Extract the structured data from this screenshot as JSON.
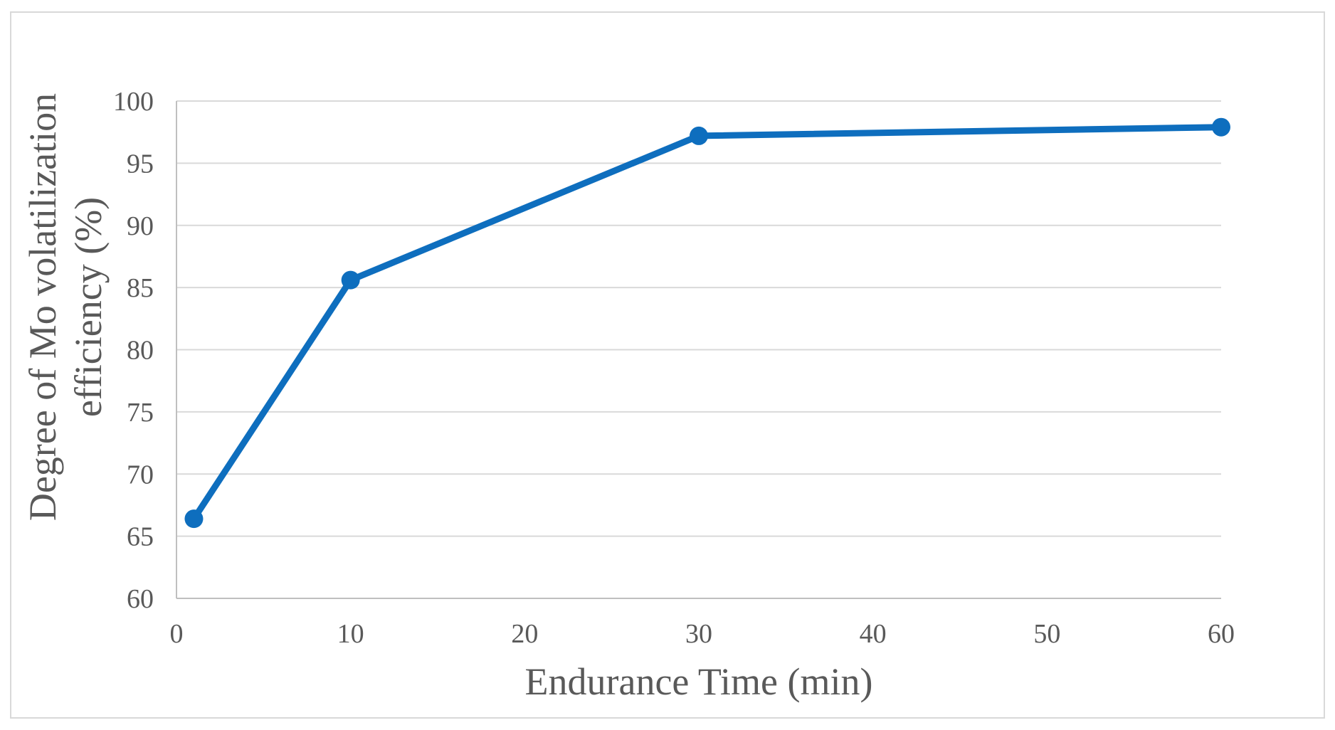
{
  "chart_data": {
    "type": "line",
    "title": "",
    "xlabel": "Endurance Time (min)",
    "ylabel_lines": [
      "Degree of Mo volatilization",
      "efficiency (%)"
    ],
    "xlim": [
      0,
      60
    ],
    "ylim": [
      60,
      100
    ],
    "x_ticks": [
      0,
      10,
      20,
      30,
      40,
      50,
      60
    ],
    "y_ticks": [
      60,
      65,
      70,
      75,
      80,
      85,
      90,
      95,
      100
    ],
    "grid": "horizontal",
    "legend": "none",
    "series": [
      {
        "color": "#0e6ebe",
        "x": [
          1,
          10,
          30,
          60
        ],
        "y": [
          66.4,
          85.6,
          97.2,
          97.9
        ]
      }
    ]
  }
}
